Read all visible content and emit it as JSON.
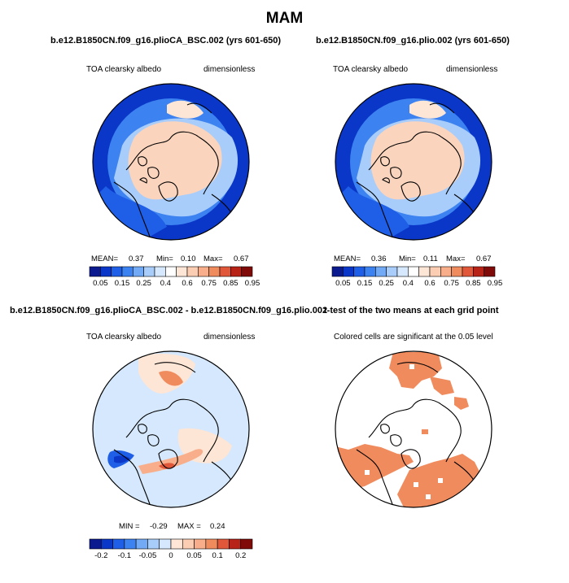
{
  "figure": {
    "title": "MAM"
  },
  "panels": [
    {
      "id": "case-a",
      "case_title": "b.e12.B1850CN.f09_g16.plioCA_BSC.002 (yrs 601-650)",
      "variable": "TOA clearsky albedo",
      "units": "dimensionless",
      "stats": {
        "mean_label": "MEAN=",
        "mean": "0.37",
        "min_label": "Min=",
        "min": "0.10",
        "max_label": "Max=",
        "max": "0.67"
      }
    },
    {
      "id": "case-b",
      "case_title": "b.e12.B1850CN.f09_g16.plio.002 (yrs 601-650)",
      "variable": "TOA clearsky albedo",
      "units": "dimensionless",
      "stats": {
        "mean_label": "MEAN=",
        "mean": "0.36",
        "min_label": "Min=",
        "min": "0.11",
        "max_label": "Max=",
        "max": "0.67"
      }
    },
    {
      "id": "difference",
      "case_title": "b.e12.B1850CN.f09_g16.plioCA_BSC.002 - b.e12.B1850CN.f09_g16.plio.002",
      "variable": "TOA clearsky albedo",
      "units": "dimensionless",
      "stats": {
        "min_label": "MIN =",
        "min": "-0.29",
        "max_label": "MAX =",
        "max": "0.24"
      }
    },
    {
      "id": "ttest",
      "case_title": "t-test of the two means at each grid point",
      "note": "Colored cells are significant at the 0.05 level"
    }
  ],
  "colorbars": {
    "albedo": {
      "colors": [
        "#0b1a8e",
        "#0a37c8",
        "#1f5ee6",
        "#3c82f0",
        "#73aaf6",
        "#a9cdfa",
        "#d5e8fd",
        "#ffffff",
        "#fde6d6",
        "#fbcdb2",
        "#f8ae8a",
        "#f08b5e",
        "#e0573a",
        "#b82318",
        "#7f0a07"
      ],
      "labels": [
        "0.05",
        "0.15",
        "0.25",
        "0.4",
        "0.6",
        "0.75",
        "0.85",
        "0.95"
      ]
    },
    "difference": {
      "colors": [
        "#0b1a8e",
        "#0a37c8",
        "#1f5ee6",
        "#3c82f0",
        "#73aaf6",
        "#a9cdfa",
        "#d5e8fd",
        "#fde6d6",
        "#fbcdb2",
        "#f8ae8a",
        "#f08b5e",
        "#e0573a",
        "#b82318",
        "#7f0a07"
      ],
      "labels": [
        "-0.2",
        "-0.1",
        "-0.05",
        "0",
        "0.05",
        "0.1",
        "0.2"
      ]
    }
  },
  "colors": {
    "ocean_low": "#1f5ee6",
    "ocean_deep": "#0a37c8",
    "ice_high": "#fbd4bd",
    "diff_background": "#d5e8fd",
    "significant": "#f08b5e",
    "coastline": "#000000"
  }
}
